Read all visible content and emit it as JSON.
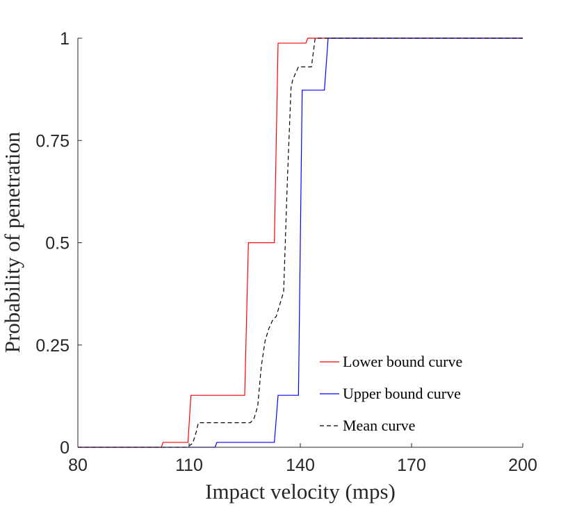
{
  "chart_data": {
    "type": "line",
    "title": "",
    "xlabel": "Impact velocity (mps)",
    "ylabel": "Probability of penetration",
    "xlim": [
      80,
      200
    ],
    "ylim": [
      0,
      1
    ],
    "xticks": [
      80,
      110,
      140,
      170,
      200
    ],
    "xtick_labels": [
      "80",
      "110",
      "140",
      "170",
      "200"
    ],
    "yticks": [
      0,
      0.25,
      0.5,
      0.75,
      1
    ],
    "ytick_labels": [
      "0",
      "0.25",
      "0.5",
      "0.75",
      "1"
    ],
    "grid": false,
    "legend_position": "bottom-right",
    "series": [
      {
        "name": "Lower bound curve",
        "color": "#ff0000",
        "style": "solid",
        "x": [
          80,
          102.5,
          103,
          109.7,
          110.5,
          125,
          126,
          133,
          134,
          141.5,
          142,
          200
        ],
        "y": [
          0,
          0,
          0.012,
          0.012,
          0.127,
          0.127,
          0.5,
          0.5,
          0.988,
          0.988,
          1,
          1
        ]
      },
      {
        "name": "Upper bound curve",
        "color": "#0000ff",
        "style": "solid",
        "x": [
          80,
          117,
          117.5,
          133,
          134,
          139.5,
          140.5,
          146.5,
          147.5,
          200
        ],
        "y": [
          0,
          0,
          0.012,
          0.012,
          0.127,
          0.127,
          0.873,
          0.873,
          1,
          1
        ]
      },
      {
        "name": "Mean curve",
        "color": "#000000",
        "style": "dashed",
        "x": [
          80,
          109.5,
          111,
          112,
          112.5,
          126.5,
          127.5,
          128.5,
          129.5,
          130.5,
          131.5,
          132.5,
          133.5,
          134.5,
          135.5,
          136.5,
          137.5,
          138,
          139.5,
          141,
          143,
          144,
          145,
          200
        ],
        "y": [
          0,
          0,
          0.01,
          0.04,
          0.06,
          0.06,
          0.07,
          0.1,
          0.2,
          0.26,
          0.29,
          0.31,
          0.32,
          0.35,
          0.38,
          0.65,
          0.88,
          0.9,
          0.93,
          0.93,
          0.93,
          1,
          1,
          1
        ]
      }
    ]
  }
}
